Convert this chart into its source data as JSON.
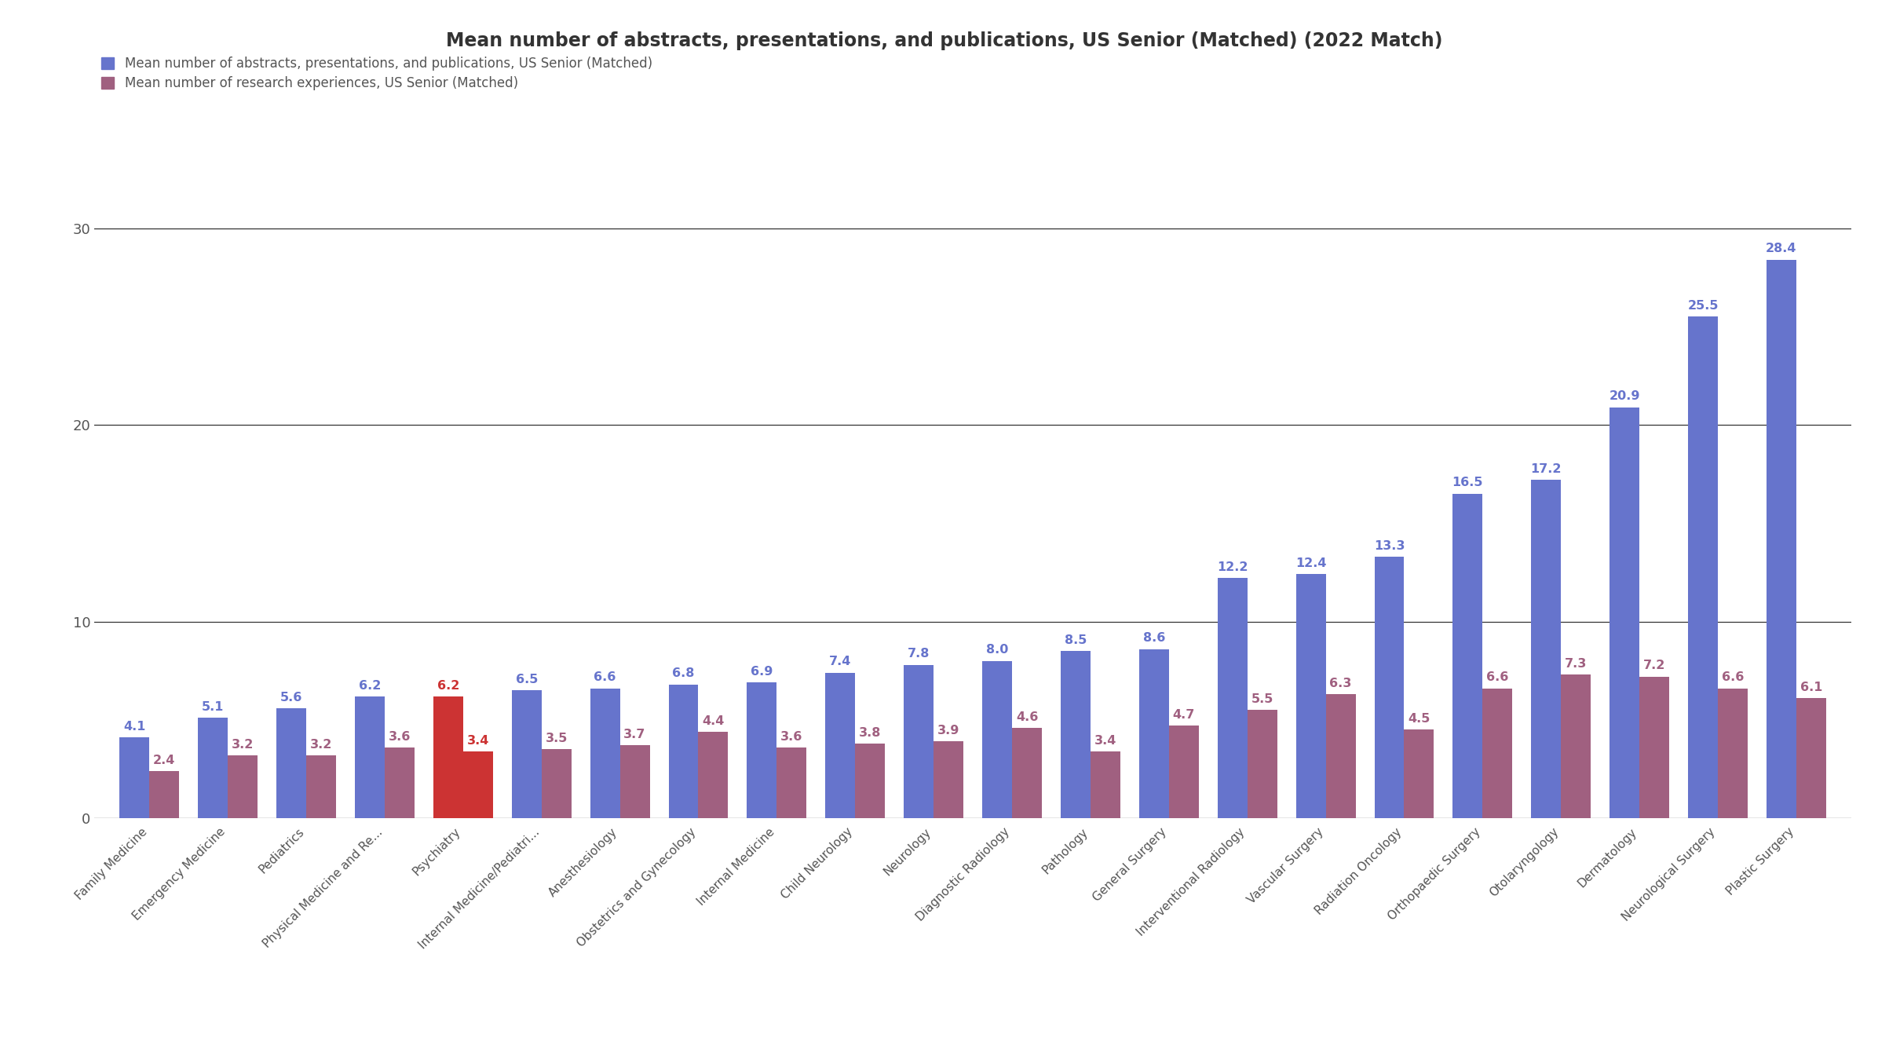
{
  "title": "Mean number of abstracts, presentations, and publications, US Senior (Matched) (2022 Match)",
  "legend1": "Mean number of abstracts, presentations, and publications, US Senior (Matched)",
  "legend2": "Mean number of research experiences, US Senior (Matched)",
  "categories": [
    "Family Medicine",
    "Emergency Medicine",
    "Pediatrics",
    "Physical Medicine and Re...",
    "Psychiatry",
    "Internal Medicine/Pediatri...",
    "Anesthesiology",
    "Obstetrics and Gynecology",
    "Internal Medicine",
    "Child Neurology",
    "Neurology",
    "Diagnostic Radiology",
    "Pathology",
    "General Surgery",
    "Interventional Radiology",
    "Vascular Surgery",
    "Radiation Oncology",
    "Orthopaedic Surgery",
    "Otolaryngology",
    "Dermatology",
    "Neurological Surgery",
    "Plastic Surgery"
  ],
  "blue_values": [
    4.1,
    5.1,
    5.6,
    6.2,
    6.2,
    6.5,
    6.6,
    6.8,
    6.9,
    7.4,
    7.8,
    8.0,
    8.5,
    8.6,
    12.2,
    12.4,
    13.3,
    16.5,
    17.2,
    20.9,
    25.5,
    28.4
  ],
  "pink_values": [
    2.4,
    3.2,
    3.2,
    3.6,
    3.4,
    3.5,
    3.7,
    4.4,
    3.6,
    3.8,
    3.9,
    4.6,
    3.4,
    4.7,
    5.5,
    6.3,
    4.5,
    6.6,
    7.3,
    7.2,
    6.6,
    6.1
  ],
  "blue_color": "#6674CC",
  "pink_color": "#A06080",
  "highlight_color": "#CC3333",
  "highlight_index": 4,
  "ylim": [
    0,
    32
  ],
  "yticks": [
    0,
    10,
    20,
    30
  ],
  "bar_width": 0.38,
  "figsize": [
    24.06,
    13.36
  ],
  "dpi": 100,
  "bg_color": "#FFFFFF",
  "title_color": "#333333",
  "label_color_blue": "#6674CC",
  "label_color_pink": "#A06080",
  "label_color_highlight": "#CC3333",
  "title_fontsize": 17,
  "label_fontsize": 11.5,
  "tick_fontsize": 13,
  "legend_fontsize": 12
}
